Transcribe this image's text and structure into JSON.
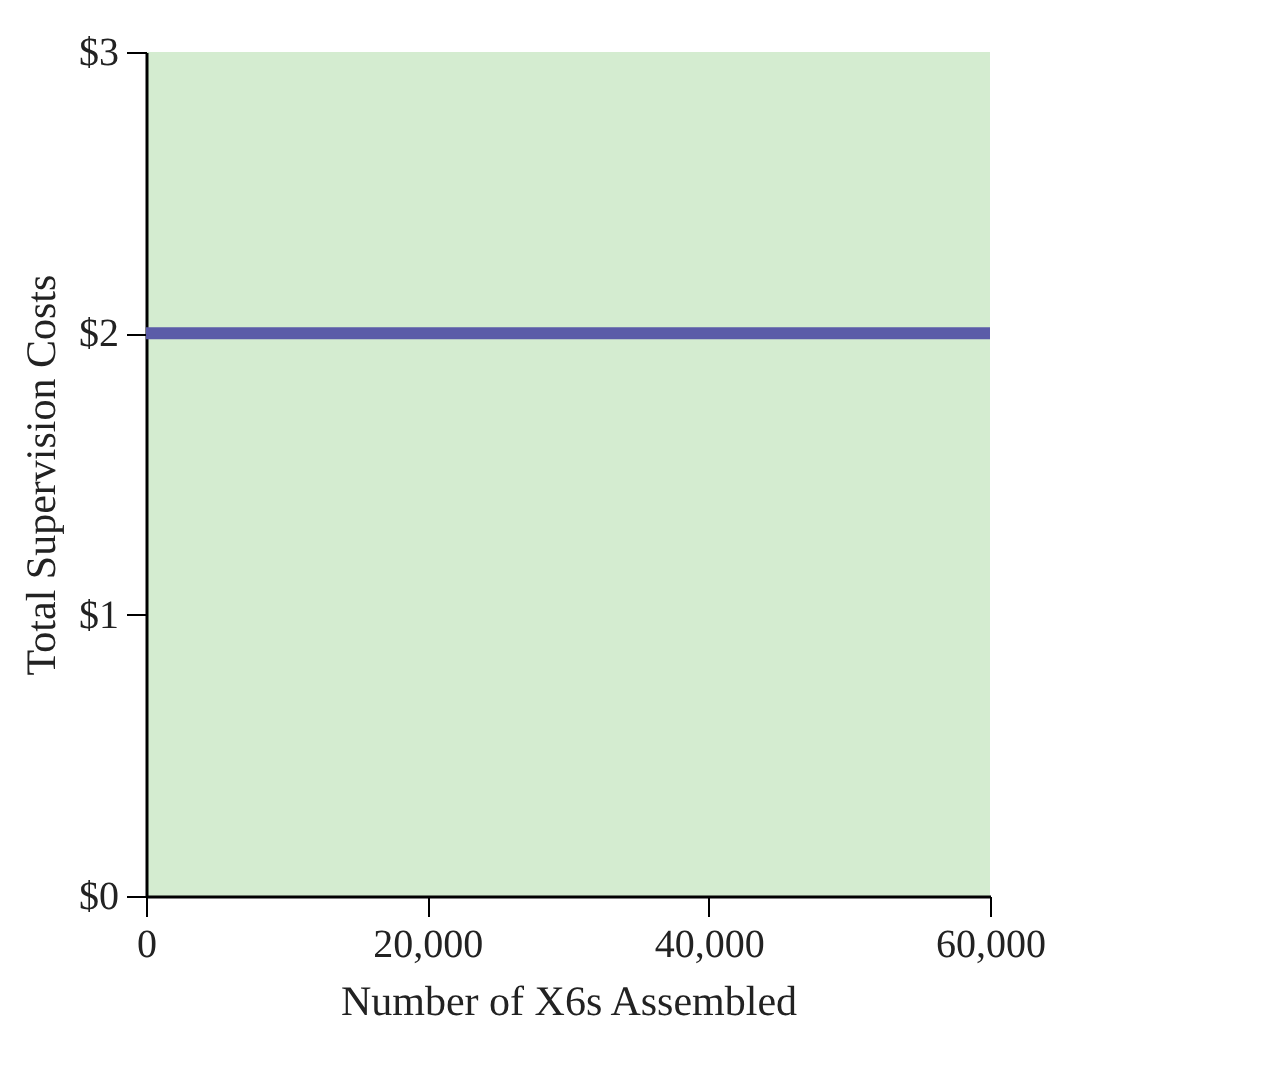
{
  "chart_data": {
    "type": "line",
    "xlabel": "Number of X6s Assembled",
    "ylabel": "Total Supervision Costs",
    "x": [
      0,
      60000
    ],
    "series": [
      {
        "color": "#5b5ca8",
        "values": [
          2,
          2
        ]
      }
    ],
    "xlim": [
      0,
      60000
    ],
    "ylim": [
      0,
      3
    ],
    "xticks": [
      0,
      {
        "value": 20000,
        "label": "20,000"
      },
      {
        "value": 40000,
        "label": "40,000"
      },
      {
        "value": 60000,
        "label": "60,000"
      }
    ],
    "yticks": [
      {
        "value": 0,
        "label": "$0"
      },
      {
        "value": 1,
        "label": "$1"
      },
      {
        "value": 2,
        "label": "$2"
      },
      {
        "value": 3,
        "label": "$3"
      }
    ],
    "grid": false,
    "marker": "none",
    "line_style": "solid"
  }
}
